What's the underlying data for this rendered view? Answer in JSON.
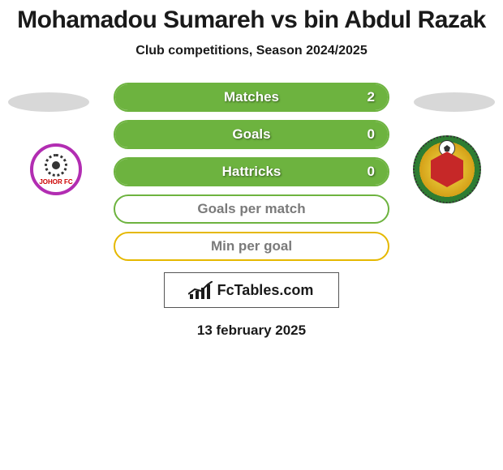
{
  "title": "Mohamadou Sumareh vs bin Abdul Razak",
  "subtitle": "Club competitions, Season 2024/2025",
  "player_oval_color": "#d8d8d8",
  "clubs": {
    "left_badge_label": "JOHOR FC"
  },
  "stats": [
    {
      "label": "Matches",
      "value": "2",
      "fill_pct": 100,
      "fill_color": "#6db33f",
      "border_color": "#6db33f",
      "show_value": true
    },
    {
      "label": "Goals",
      "value": "0",
      "fill_pct": 100,
      "fill_color": "#6db33f",
      "border_color": "#6db33f",
      "show_value": true
    },
    {
      "label": "Hattricks",
      "value": "0",
      "fill_pct": 100,
      "fill_color": "#6db33f",
      "border_color": "#6db33f",
      "show_value": true
    },
    {
      "label": "Goals per match",
      "value": "",
      "fill_pct": 0,
      "fill_color": "#6db33f",
      "border_color": "#6db33f",
      "show_value": false
    },
    {
      "label": "Min per goal",
      "value": "",
      "fill_pct": 0,
      "fill_color": "#e5b800",
      "border_color": "#e5b800",
      "show_value": false
    }
  ],
  "empty_label_color": "#7a7a7a",
  "brand_text": "FcTables.com",
  "date": "13 february 2025",
  "background_color": "#ffffff",
  "text_color": "#1a1a1a",
  "title_fontsize": 30,
  "subtitle_fontsize": 16,
  "stat_fontsize": 17,
  "stat_row_height": 36,
  "stat_row_radius": 18,
  "stats_width": 340
}
